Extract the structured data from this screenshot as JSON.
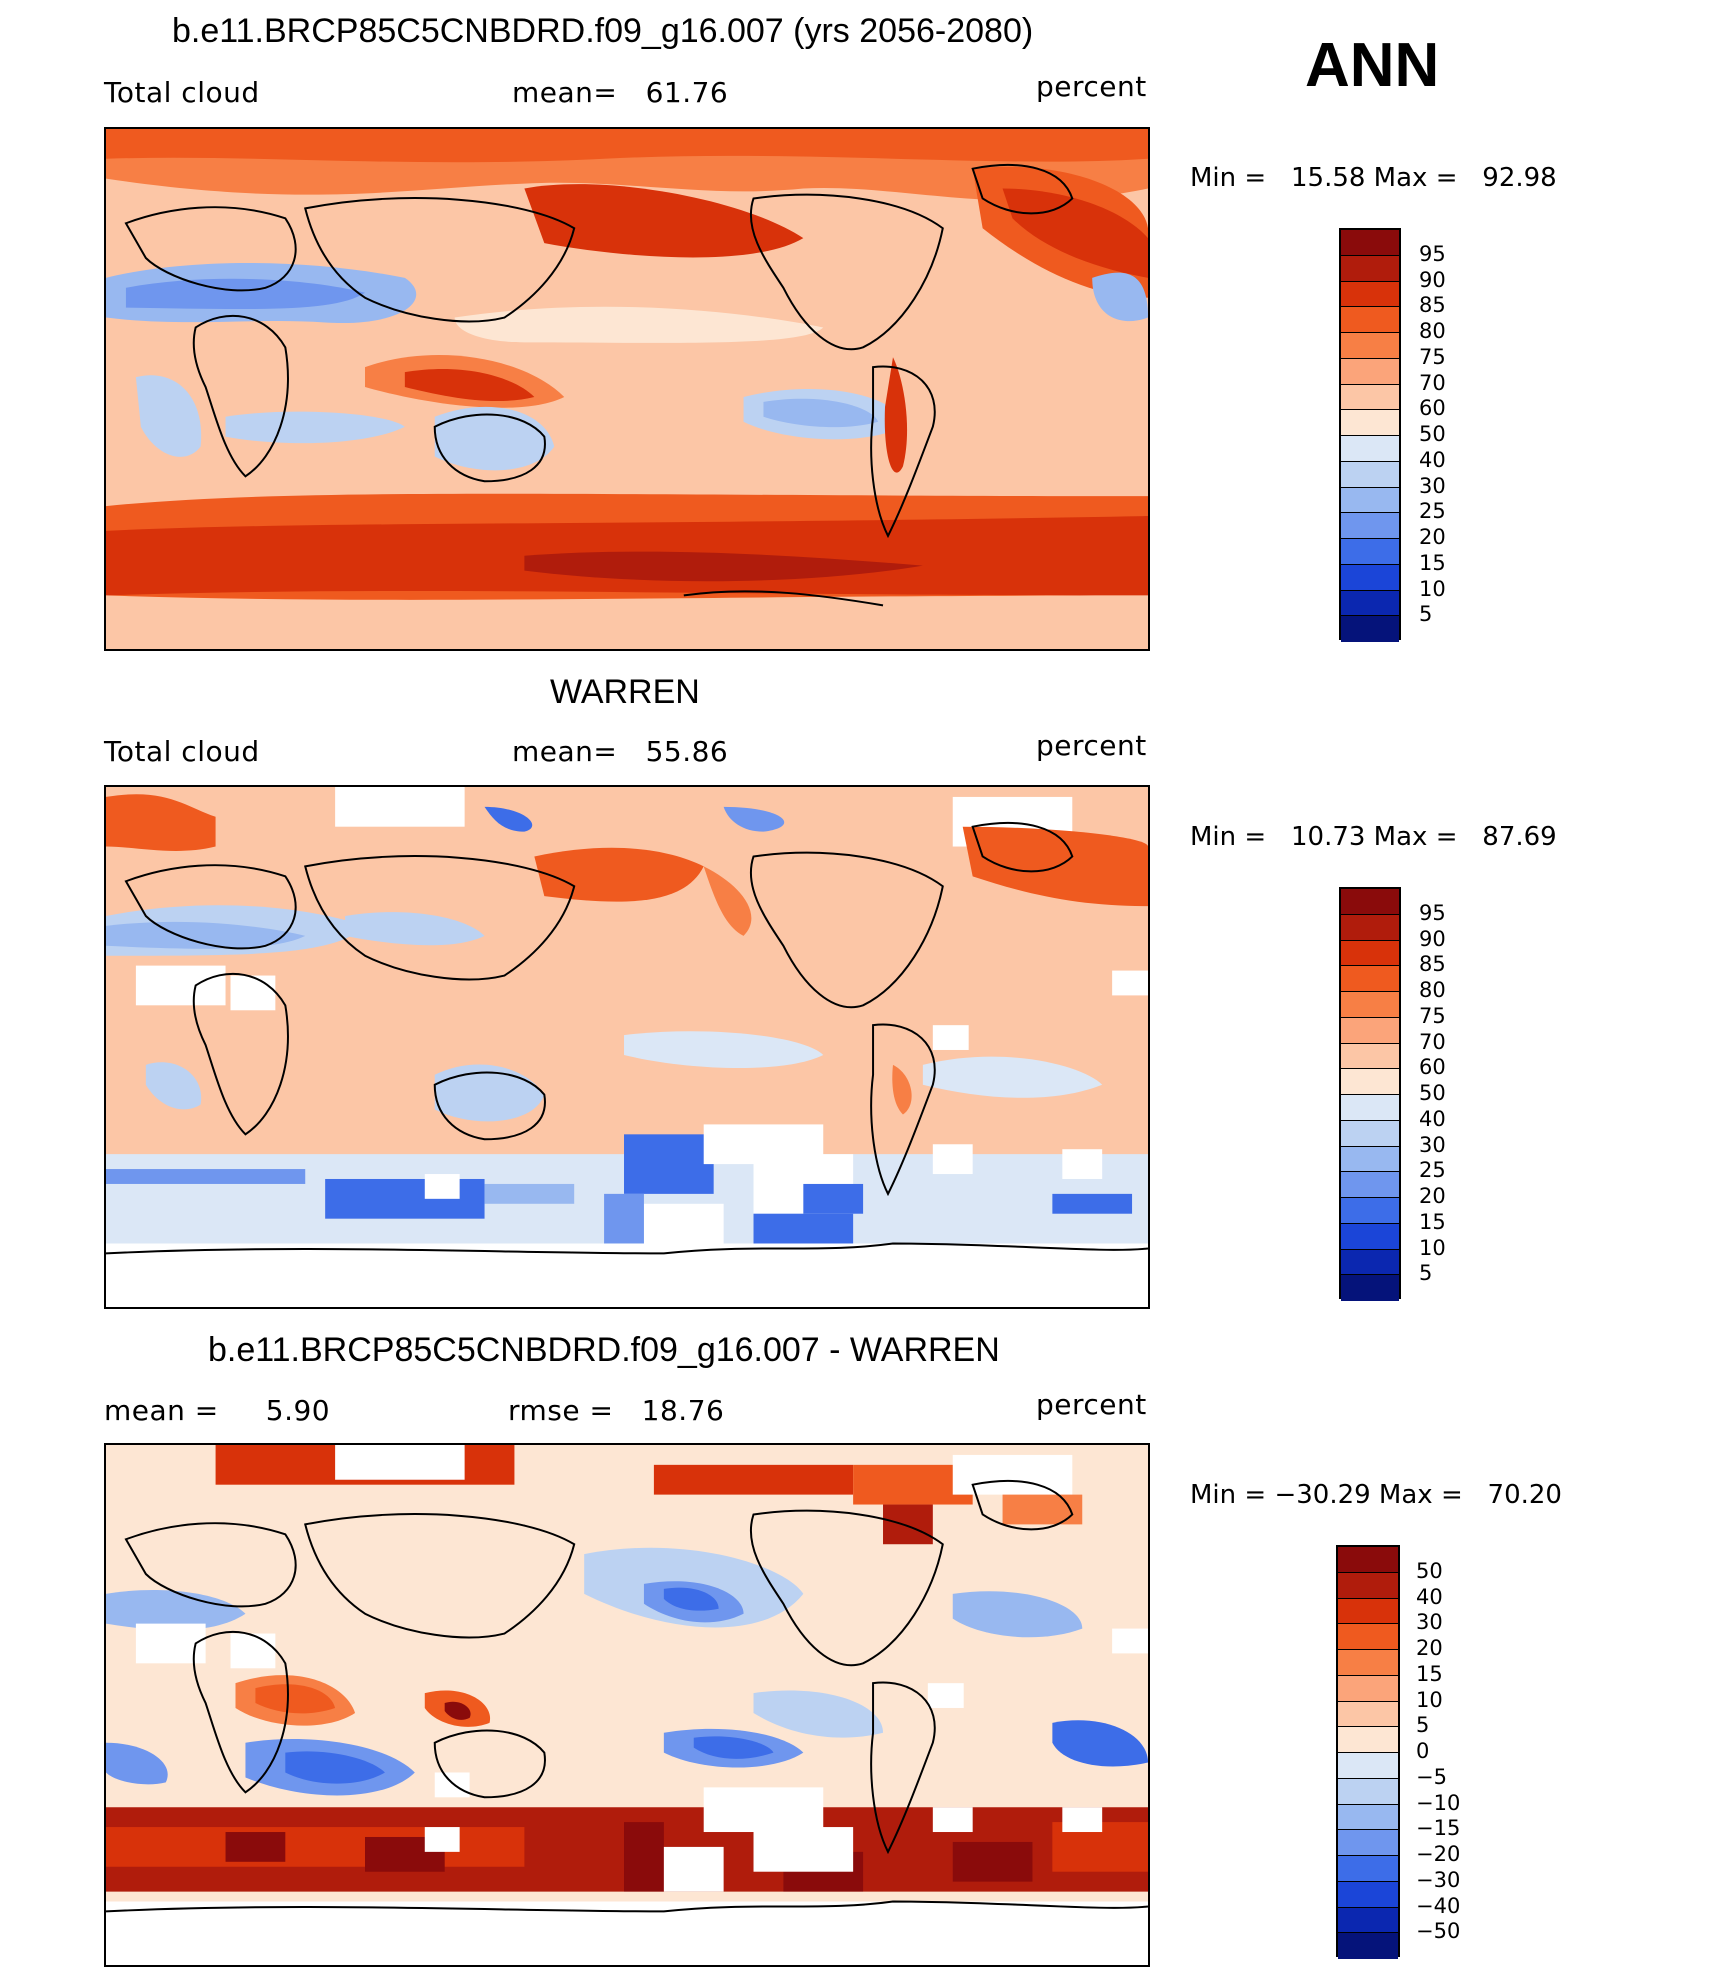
{
  "season": "ANN",
  "panels": [
    {
      "id": "model",
      "title": "b.e11.BRCP85C5CNBDRD.f09_g16.007 (yrs 2056-2080)",
      "left_label": "Total cloud",
      "mid_label": "mean=   61.76",
      "units": "percent",
      "minmax": "Min =   15.58 Max =   92.98",
      "colorbar_labels": [
        "95",
        "90",
        "85",
        "80",
        "75",
        "70",
        "60",
        "50",
        "40",
        "30",
        "25",
        "20",
        "15",
        "10",
        "5"
      ],
      "colorbar_colors": [
        "#8a0b0b",
        "#b01c0c",
        "#d8320a",
        "#ef5a1f",
        "#f77f45",
        "#fba47a",
        "#fcc6a6",
        "#fde6d3",
        "#dbe7f6",
        "#bcd2f2",
        "#98b8f0",
        "#6f96ee",
        "#3d6de8",
        "#1b45d8",
        "#0b27b0",
        "#05137a"
      ],
      "features": "storm tracks and Southern Ocean high cloud (red), subtropical deserts and eastern Pacific stratocumulus gaps (blue)"
    },
    {
      "id": "obs",
      "title": "WARREN",
      "left_label": "Total cloud",
      "mid_label": "mean=   55.86",
      "units": "percent",
      "minmax": "Min =   10.73 Max =   87.69",
      "colorbar_labels": [
        "95",
        "90",
        "85",
        "80",
        "75",
        "70",
        "60",
        "50",
        "40",
        "30",
        "25",
        "20",
        "15",
        "10",
        "5"
      ],
      "colorbar_colors": [
        "#8a0b0b",
        "#b01c0c",
        "#d8320a",
        "#ef5a1f",
        "#f77f45",
        "#fba47a",
        "#fcc6a6",
        "#fde6d3",
        "#dbe7f6",
        "#bcd2f2",
        "#98b8f0",
        "#6f96ee",
        "#3d6de8",
        "#1b45d8",
        "#0b27b0",
        "#05137a"
      ]
    },
    {
      "id": "diff",
      "title": "b.e11.BRCP85C5CNBDRD.f09_g16.007 - WARREN",
      "left_label": "mean =     5.90",
      "mid_label": "rmse =   18.76",
      "units": "percent",
      "minmax": "Min = −30.29 Max =   70.20",
      "colorbar_labels": [
        "50",
        "40",
        "30",
        "20",
        "15",
        "10",
        "5",
        "0",
        "−5",
        "−10",
        "−15",
        "−20",
        "−30",
        "−40",
        "−50"
      ],
      "colorbar_colors": [
        "#8a0b0b",
        "#b01c0c",
        "#d8320a",
        "#ef5a1f",
        "#f77f45",
        "#fba47a",
        "#fcc6a6",
        "#fde6d3",
        "#dbe7f6",
        "#bcd2f2",
        "#98b8f0",
        "#6f96ee",
        "#3d6de8",
        "#1b45d8",
        "#0b27b0",
        "#05137a"
      ]
    }
  ],
  "map_colors": {
    "land_line": "#000000",
    "missing": "#ffffff"
  }
}
